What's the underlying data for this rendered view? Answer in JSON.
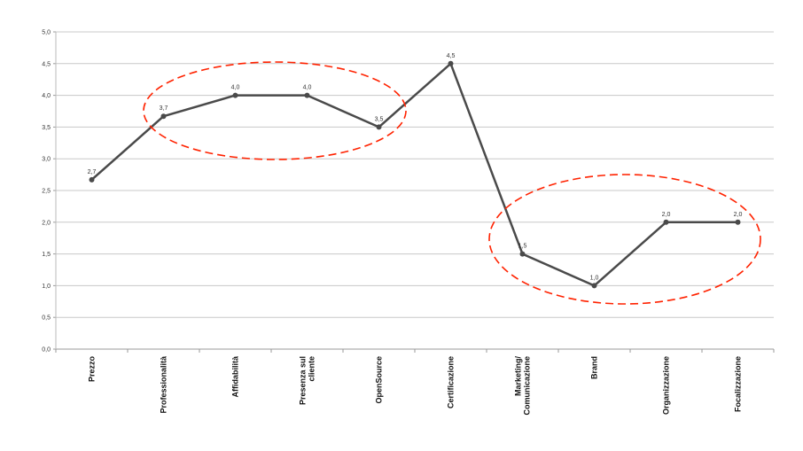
{
  "chart_data": {
    "type": "line",
    "title": "",
    "xlabel": "",
    "ylabel": "",
    "ylim": [
      0,
      5
    ],
    "ytick_step": 0.5,
    "yticks": [
      "0,0",
      "0,5",
      "1,0",
      "1,5",
      "2,0",
      "2,5",
      "3,0",
      "3,5",
      "4,0",
      "4,5",
      "5,0"
    ],
    "grid": true,
    "categories": [
      "Prezzo",
      "Professionalità",
      "Affidabilità",
      "Presenza sul cliente",
      "OpenSource",
      "Certificazione",
      "Marketing/ Comunicazione",
      "Brand",
      "Organizzazione",
      "Focalizzazione"
    ],
    "category_lines": [
      [
        "Prezzo"
      ],
      [
        "Professionalità"
      ],
      [
        "Affidabilità"
      ],
      [
        "Presenza sul",
        "cliente"
      ],
      [
        "OpenSource"
      ],
      [
        "Certificazione"
      ],
      [
        "Marketing/",
        "Comunicazione"
      ],
      [
        "Brand"
      ],
      [
        "Organizzazione"
      ],
      [
        "Focalizzazione"
      ]
    ],
    "series": [
      {
        "name": "",
        "values": [
          2.67,
          3.67,
          4.0,
          4.0,
          3.5,
          4.5,
          1.5,
          1.0,
          2.0,
          2.0
        ],
        "labels": [
          "2,7",
          "3,7",
          "4,0",
          "4,0",
          "3,5",
          "4,5",
          "1,5",
          "1,0",
          "2,0",
          "2,0"
        ],
        "color": "#4a4a4a"
      }
    ],
    "annotations": [
      {
        "type": "dashed-ellipse",
        "color": "#ff2200",
        "covers_categories": [
          "Professionalità",
          "Affidabilità",
          "Presenza sul cliente",
          "OpenSource"
        ]
      },
      {
        "type": "dashed-ellipse",
        "color": "#ff2200",
        "covers_categories": [
          "Marketing/ Comunicazione",
          "Brand",
          "Organizzazione",
          "Focalizzazione"
        ]
      }
    ]
  }
}
